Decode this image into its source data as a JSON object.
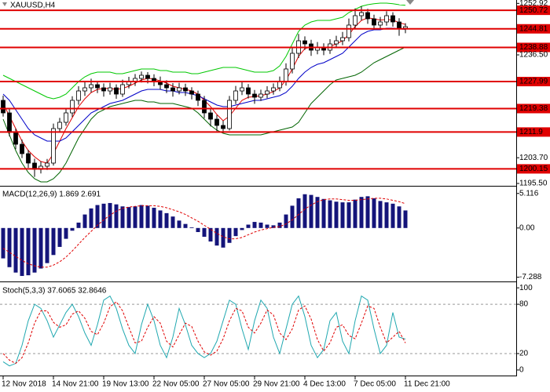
{
  "chart_data": [
    {
      "type": "candlestick",
      "title": "XAUUSD,H4",
      "open": [
        1222,
        1218,
        1212,
        1208,
        1205,
        1202,
        1200,
        1201,
        1202,
        1213,
        1215,
        1218,
        1222,
        1225,
        1226,
        1227,
        1226,
        1225,
        1226,
        1224,
        1227,
        1228,
        1229,
        1230,
        1229,
        1228,
        1227,
        1226,
        1225,
        1226,
        1225,
        1224,
        1222,
        1218,
        1216,
        1214,
        1213,
        1222,
        1225,
        1226,
        1224,
        1223,
        1224,
        1225,
        1226,
        1228,
        1232,
        1237,
        1241,
        1240,
        1238,
        1239,
        1238,
        1240,
        1241,
        1242,
        1246,
        1249,
        1250,
        1248,
        1246,
        1247,
        1249,
        1247,
        1245
      ],
      "high": [
        1223.5,
        1219.2,
        1213,
        1209.5,
        1206.2,
        1203.4,
        1202.5,
        1203.3,
        1214.6,
        1216.4,
        1219.5,
        1223.3,
        1226.5,
        1227.8,
        1228.9,
        1228.2,
        1227.4,
        1227.6,
        1227.1,
        1228.6,
        1229.5,
        1230.4,
        1231.2,
        1231.0,
        1230.3,
        1229.6,
        1228.4,
        1227.5,
        1227.6,
        1227.3,
        1226.2,
        1225.1,
        1223.4,
        1219.5,
        1217.3,
        1215.5,
        1223.4,
        1226.6,
        1227.9,
        1227.2,
        1225.3,
        1225.4,
        1226.5,
        1227.4,
        1229.6,
        1233.8,
        1238.9,
        1243.2,
        1242.4,
        1241.3,
        1240.6,
        1240.2,
        1241.5,
        1242.6,
        1243.8,
        1248.1,
        1251.3,
        1252.0,
        1251.2,
        1249.3,
        1248.6,
        1250.4,
        1250.1,
        1248.2,
        1246.6
      ],
      "low": [
        1216.8,
        1210.5,
        1206.4,
        1203.6,
        1200.5,
        1197.6,
        1198.7,
        1199.8,
        1201.2,
        1211.8,
        1213.9,
        1216.7,
        1220.6,
        1223.4,
        1224.5,
        1224.3,
        1223.2,
        1223.8,
        1222.5,
        1223.1,
        1225.8,
        1226.6,
        1227.7,
        1227.4,
        1226.5,
        1225.4,
        1224.3,
        1223.2,
        1223.9,
        1223.4,
        1222.3,
        1220.2,
        1216.3,
        1213.7,
        1212.2,
        1211.6,
        1212.4,
        1220.8,
        1223.7,
        1222.6,
        1220.9,
        1221.8,
        1222.7,
        1223.8,
        1224.9,
        1226.7,
        1230.6,
        1235.5,
        1238.1,
        1236.2,
        1236.7,
        1236.4,
        1236.8,
        1238.7,
        1239.6,
        1240.8,
        1244.6,
        1247.5,
        1246.4,
        1244.5,
        1244.7,
        1245.8,
        1245.5,
        1242.6,
        1243.4
      ],
      "close": [
        1218,
        1212,
        1208,
        1205,
        1202,
        1200,
        1201,
        1202,
        1213,
        1215,
        1218,
        1222,
        1225,
        1226,
        1227,
        1226,
        1225,
        1226,
        1224,
        1227,
        1228,
        1229,
        1230,
        1229,
        1228,
        1227,
        1226,
        1225,
        1226,
        1225,
        1224,
        1222,
        1218,
        1216,
        1214,
        1213,
        1222,
        1225,
        1226,
        1224,
        1223,
        1224,
        1225,
        1226,
        1228,
        1232,
        1237,
        1241,
        1240,
        1238,
        1239,
        1238,
        1240,
        1241,
        1242,
        1246,
        1249,
        1250,
        1248,
        1246,
        1247,
        1249,
        1247,
        1245,
        1245.5
      ],
      "up_color": "#ffffff",
      "down_color": "#000000",
      "wick_color": "#000000",
      "series": [
        {
          "color": "#00c800",
          "values": [
            1230,
            1229,
            1228,
            1227,
            1226,
            1225,
            1224,
            1223,
            1222.5,
            1223,
            1224,
            1226,
            1228,
            1229.5,
            1230.5,
            1231,
            1231,
            1231,
            1230.5,
            1230.5,
            1231,
            1231.5,
            1232,
            1232,
            1232,
            1231.5,
            1231.5,
            1231,
            1231,
            1231,
            1230.5,
            1230.5,
            1231,
            1231.5,
            1232,
            1232.5,
            1232.5,
            1232.5,
            1232,
            1231.5,
            1231,
            1231,
            1231,
            1231.5,
            1233,
            1236,
            1240,
            1244,
            1246,
            1247,
            1247.5,
            1247.5,
            1247.5,
            1248,
            1248.5,
            1250,
            1251,
            1252,
            1252.5,
            1252.8,
            1253,
            1253,
            1252.8,
            1252.5,
            1252.3
          ]
        },
        {
          "color": "#006400",
          "values": [
            1216,
            1211,
            1206,
            1202,
            1199,
            1197,
            1196,
            1196,
            1197,
            1199,
            1202,
            1206,
            1210,
            1213,
            1216,
            1218,
            1219,
            1220,
            1220.5,
            1221,
            1221.5,
            1222,
            1222,
            1221.5,
            1221.5,
            1221,
            1221,
            1221,
            1220.5,
            1220,
            1219.5,
            1218,
            1216,
            1214,
            1212.5,
            1211.5,
            1211,
            1211,
            1211,
            1211,
            1211,
            1211,
            1211.5,
            1212,
            1212.5,
            1213,
            1213.5,
            1215,
            1218,
            1221,
            1223,
            1225,
            1227,
            1228.5,
            1229,
            1229.5,
            1230,
            1231,
            1232.5,
            1234,
            1235,
            1236,
            1237,
            1238,
            1239
          ]
        },
        {
          "color": "#e00000",
          "values": [
            1221,
            1217,
            1213,
            1209,
            1206,
            1204,
            1202.5,
            1202,
            1205,
            1209,
            1213,
            1216.5,
            1220,
            1222.5,
            1224.5,
            1225.5,
            1225.8,
            1225.8,
            1225.5,
            1225.8,
            1226.5,
            1227.5,
            1228.5,
            1229,
            1228.8,
            1228.2,
            1227.5,
            1226.5,
            1226,
            1225.5,
            1225,
            1224,
            1222,
            1220,
            1217.5,
            1215.5,
            1217,
            1219.5,
            1222,
            1223,
            1223.2,
            1223.5,
            1224,
            1224.8,
            1226,
            1228.5,
            1232,
            1236,
            1238.5,
            1239,
            1239,
            1238.8,
            1239.2,
            1240,
            1241,
            1243,
            1245.5,
            1247.5,
            1248.3,
            1248,
            1247.6,
            1247.8,
            1247.6,
            1246.8,
            1246.2
          ]
        },
        {
          "color": "#0000c8",
          "values": [
            1224,
            1222,
            1219,
            1216,
            1213,
            1211,
            1210,
            1209,
            1209,
            1209,
            1210,
            1212,
            1214,
            1216,
            1218,
            1219,
            1220,
            1221,
            1221.5,
            1222,
            1223,
            1224,
            1225,
            1225.5,
            1225.5,
            1225.5,
            1225,
            1225,
            1224.5,
            1224.5,
            1224,
            1223.5,
            1222.5,
            1221.5,
            1220.5,
            1220,
            1220,
            1220.5,
            1221,
            1221.5,
            1222,
            1222,
            1222.5,
            1223,
            1223.5,
            1224.5,
            1226.5,
            1229,
            1231,
            1232.5,
            1233.5,
            1234,
            1235,
            1236,
            1237,
            1239,
            1241,
            1243,
            1244,
            1244.5,
            1244.5,
            1245,
            1245,
            1244.8,
            1244.6
          ]
        }
      ],
      "levels": [
        1250.72,
        1244.81,
        1238.88,
        1227.99,
        1219.38,
        1211.9,
        1200.15
      ],
      "level_color": "#e00000",
      "ylim": [
        1195,
        1254
      ],
      "yticks": [
        1252.92,
        {
          "value": 1236.5,
          "label": "1236.50"
        },
        {
          "value": 1203.7,
          "label": "1203.70"
        },
        {
          "value": 1195.5,
          "label": "1195.50"
        }
      ]
    },
    {
      "type": "bar",
      "title": "MACD(12,26,9) 1.869 2.691",
      "values": [
        -4.5,
        -5.8,
        -6.6,
        -7.1,
        -7.0,
        -6.6,
        -6.0,
        -5.2,
        -4.0,
        -2.8,
        -1.6,
        -0.4,
        0.8,
        2.0,
        2.9,
        3.4,
        3.6,
        3.7,
        3.5,
        3.2,
        3.1,
        3.2,
        3.4,
        3.3,
        3.0,
        2.6,
        2.2,
        1.7,
        1.1,
        0.6,
        0.1,
        -0.6,
        -1.3,
        -2.0,
        -2.6,
        -2.9,
        -2.2,
        -1.2,
        -0.3,
        0.5,
        0.9,
        0.8,
        0.5,
        0.4,
        0.8,
        2.0,
        3.3,
        4.4,
        5.0,
        4.9,
        4.6,
        4.3,
        4.1,
        3.9,
        3.8,
        3.8,
        4.2,
        4.6,
        4.7,
        4.4,
        4.0,
        3.8,
        3.6,
        3.2,
        2.6
      ],
      "color": "#14147a",
      "series": [
        {
          "color": "#e00000",
          "dashed": true,
          "values": [
            -3.0,
            -3.6,
            -4.2,
            -4.8,
            -5.3,
            -5.6,
            -5.8,
            -5.8,
            -5.5,
            -5.0,
            -4.3,
            -3.4,
            -2.4,
            -1.4,
            -0.5,
            0.4,
            1.2,
            1.9,
            2.5,
            2.9,
            3.1,
            3.2,
            3.3,
            3.3,
            3.3,
            3.2,
            3.0,
            2.7,
            2.4,
            2.0,
            1.5,
            1.0,
            0.4,
            -0.2,
            -0.8,
            -1.3,
            -1.6,
            -1.6,
            -1.4,
            -1.0,
            -0.6,
            -0.3,
            -0.1,
            0.1,
            0.2,
            0.6,
            1.2,
            2.0,
            2.8,
            3.4,
            3.9,
            4.2,
            4.3,
            4.3,
            4.2,
            4.1,
            4.1,
            4.2,
            4.3,
            4.4,
            4.4,
            4.3,
            4.1,
            3.9,
            3.6
          ]
        }
      ],
      "ylim": [
        -7.8,
        5.9
      ],
      "yticks": [
        5.116,
        {
          "value": 0,
          "label": "0.00"
        },
        -7.288
      ]
    },
    {
      "type": "line",
      "title": "Stoch(5,3,3) 37.6065 32.8646",
      "categories": [
        "12 Nov 2018",
        null,
        null,
        null,
        null,
        null,
        null,
        null,
        "14 Nov 21:00",
        null,
        null,
        null,
        null,
        null,
        null,
        null,
        "19 Nov 13:00",
        null,
        null,
        null,
        null,
        null,
        null,
        null,
        "22 Nov 05:00",
        null,
        null,
        null,
        null,
        null,
        null,
        null,
        "27 Nov 05:00",
        null,
        null,
        null,
        null,
        null,
        null,
        null,
        "29 Nov 21:00",
        null,
        null,
        null,
        null,
        null,
        null,
        null,
        "4 Dec 13:00",
        null,
        null,
        null,
        null,
        null,
        null,
        null,
        "7 Dec 05:00",
        null,
        null,
        null,
        null,
        null,
        null,
        null,
        "11 Dec 21:00"
      ],
      "series": [
        {
          "color": "#20a8b0",
          "values": [
            10,
            5,
            8,
            30,
            60,
            80,
            75,
            60,
            40,
            55,
            70,
            80,
            65,
            45,
            30,
            55,
            85,
            90,
            75,
            50,
            30,
            20,
            55,
            80,
            60,
            30,
            15,
            40,
            75,
            55,
            30,
            20,
            15,
            20,
            35,
            60,
            85,
            80,
            50,
            25,
            60,
            85,
            75,
            40,
            20,
            50,
            80,
            90,
            65,
            30,
            15,
            25,
            60,
            70,
            35,
            20,
            60,
            90,
            85,
            50,
            20,
            30,
            70,
            40,
            37.6
          ]
        },
        {
          "color": "#e00000",
          "dashed": true,
          "values": [
            20,
            12,
            8,
            15,
            33,
            57,
            72,
            72,
            58,
            52,
            55,
            68,
            72,
            63,
            47,
            43,
            57,
            77,
            83,
            72,
            52,
            33,
            35,
            52,
            65,
            57,
            35,
            28,
            43,
            57,
            53,
            35,
            22,
            18,
            23,
            38,
            60,
            75,
            72,
            52,
            45,
            57,
            73,
            67,
            45,
            37,
            50,
            73,
            78,
            62,
            37,
            23,
            33,
            52,
            55,
            42,
            38,
            57,
            78,
            75,
            52,
            33,
            40,
            47,
            32.9
          ]
        }
      ],
      "levels": [
        80,
        20
      ],
      "ylim": [
        -5.8,
        104.9
      ],
      "yticks": [
        100,
        80,
        20,
        0
      ]
    }
  ]
}
